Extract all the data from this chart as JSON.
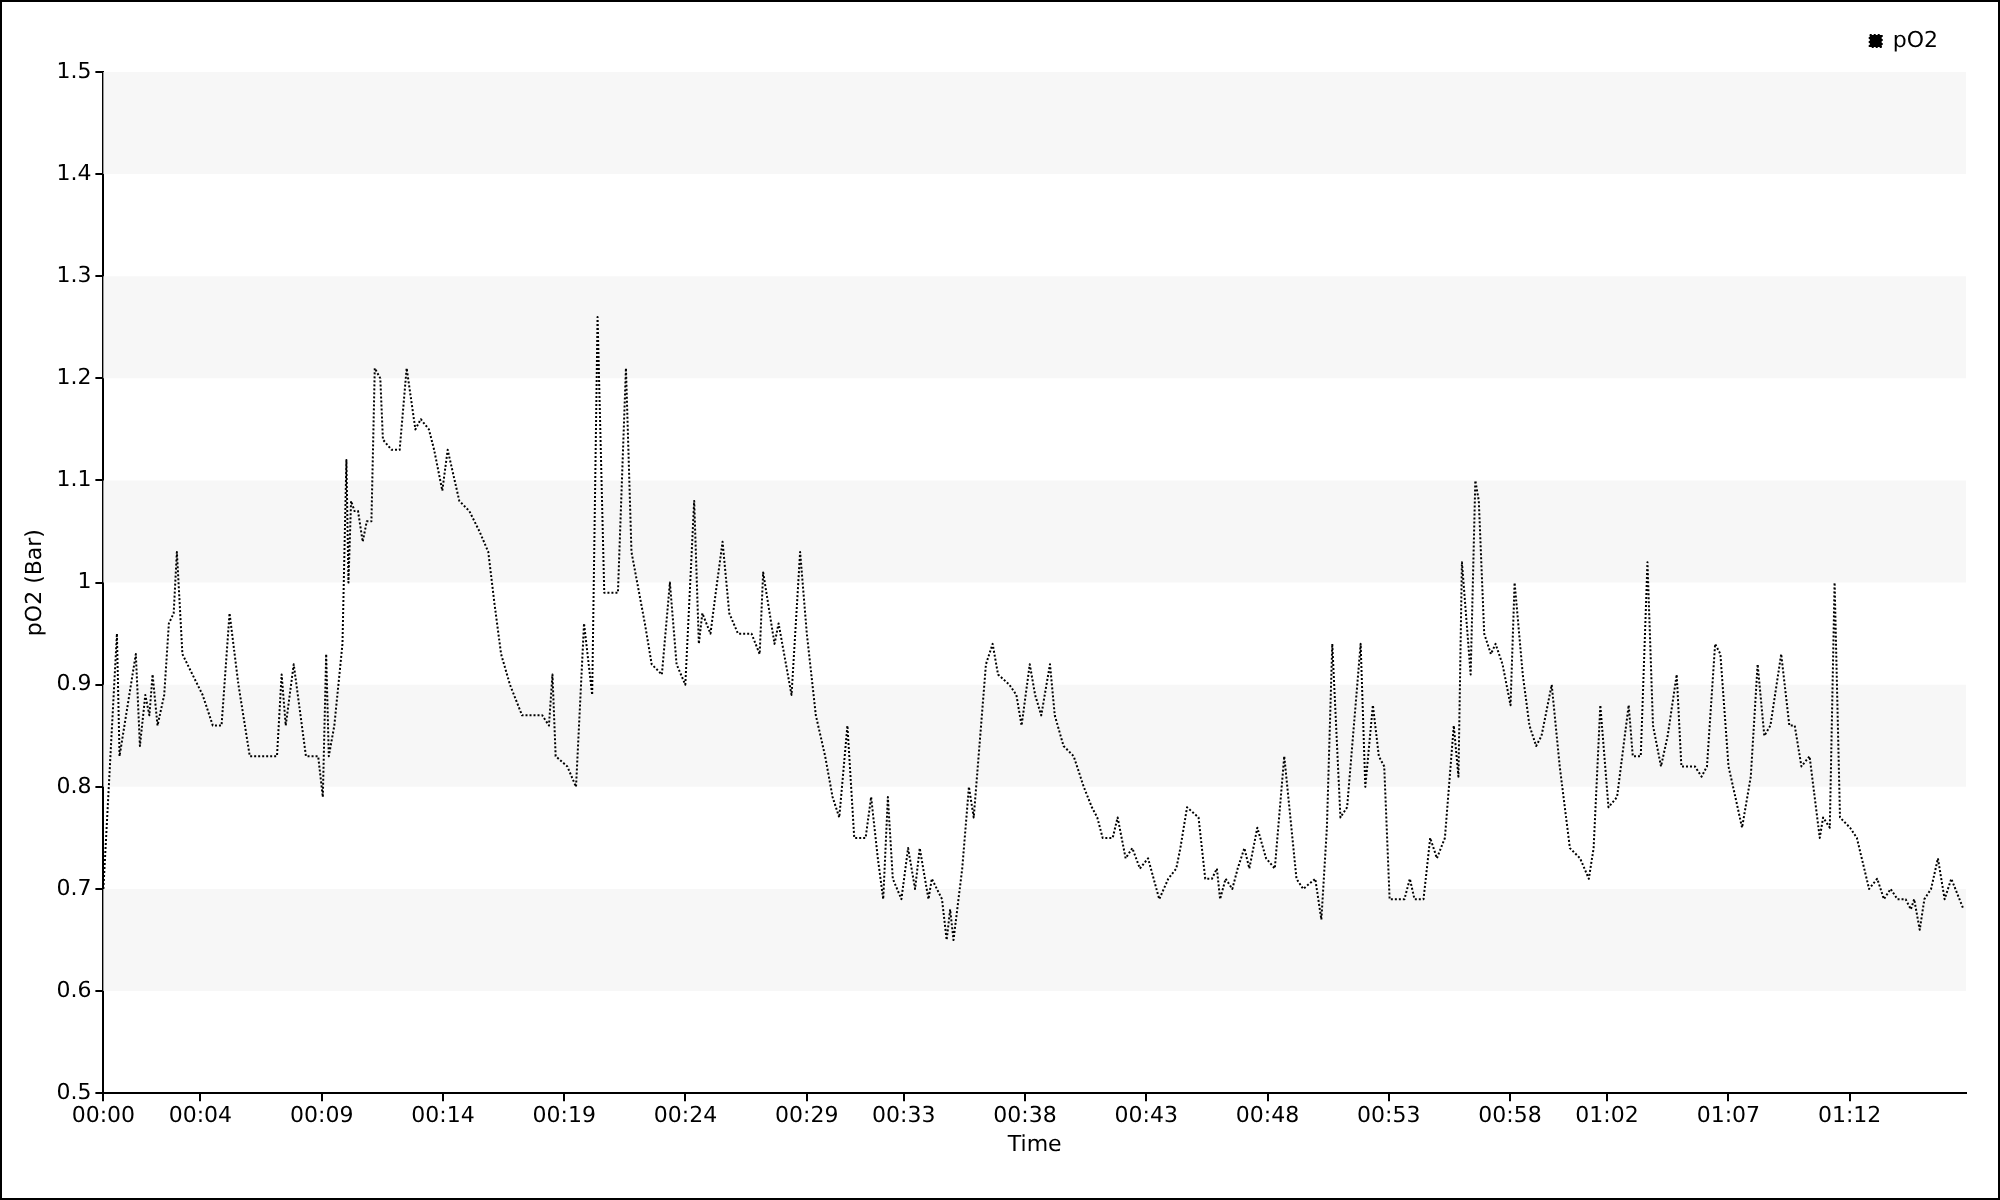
{
  "chart_data": {
    "type": "line",
    "xlabel": "Time",
    "ylabel": "pO2 (Bar)",
    "x": [
      0,
      0.0093,
      0.0111,
      0.0223,
      0.0251,
      0.0288,
      0.0316,
      0.0338,
      0.0372,
      0.0418,
      0.045,
      0.0483,
      0.0505,
      0.0543,
      0.0612,
      0.0682,
      0.0752,
      0.0812,
      0.0867,
      0.0928,
      0.1006,
      0.1193,
      0.1225,
      0.1253,
      0.1308,
      0.1392,
      0.1476,
      0.1508,
      0.1531,
      0.1549,
      0.1587,
      0.1643,
      0.167,
      0.1684,
      0.1702,
      0.1726,
      0.175,
      0.1782,
      0.181,
      0.1842,
      0.1865,
      0.1903,
      0.1921,
      0.1981,
      0.2036,
      0.2084,
      0.2144,
      0.2181,
      0.2237,
      0.2273,
      0.2329,
      0.2366,
      0.2446,
      0.2515,
      0.2585,
      0.2645,
      0.2687,
      0.2733,
      0.2794,
      0.2877,
      0.3016,
      0.3062,
      0.3086,
      0.3108,
      0.3188,
      0.3248,
      0.3303,
      0.3359,
      0.3396,
      0.3442,
      0.3536,
      0.3591,
      0.3629,
      0.3721,
      0.3768,
      0.3838,
      0.3893,
      0.3939,
      0.3999,
      0.406,
      0.4092,
      0.4116,
      0.4172,
      0.4208,
      0.4255,
      0.4301,
      0.4361,
      0.4454,
      0.451,
      0.4534,
      0.4612,
      0.464,
      0.4729,
      0.4788,
      0.4834,
      0.4896,
      0.496,
      0.5011,
      0.5057,
      0.5113,
      0.516,
      0.5238,
      0.5276,
      0.5322,
      0.5359,
      0.5391,
      0.5425,
      0.5484,
      0.553,
      0.5578,
      0.561,
      0.567,
      0.5693,
      0.5763,
      0.5795,
      0.5819,
      0.5842,
      0.5902,
      0.5948,
      0.5981,
      0.6065,
      0.6111,
      0.6148,
      0.6226,
      0.6274,
      0.631,
      0.6366,
      0.6403,
      0.6445,
      0.6505,
      0.6538,
      0.6598,
      0.6668,
      0.6737,
      0.6793,
      0.683,
      0.6867,
      0.6936,
      0.697,
      0.7025,
      0.7071,
      0.7123,
      0.7179,
      0.7256,
      0.7318,
      0.7373,
      0.7401,
      0.7447,
      0.7526,
      0.7572,
      0.7618,
      0.7652,
      0.7674,
      0.7712,
      0.7758,
      0.7795,
      0.7841,
      0.7875,
      0.793,
      0.799,
      0.805,
      0.8115,
      0.8199,
      0.8245,
      0.8328,
      0.837,
      0.8408,
      0.8445,
      0.8501,
      0.8547,
      0.864,
      0.8672,
      0.8724,
      0.8765,
      0.8802,
      0.8839,
      0.8941,
      0.8978,
      0.901,
      0.9072,
      0.9118,
      0.9164,
      0.9219,
      0.928,
      0.9312,
      0.9336,
      0.9396,
      0.9428,
      0.9452,
      0.9489,
      0.9535,
      0.9567,
      0.9615,
      0.967,
      0.9698,
      0.9754,
      0.98,
      0.9846,
      0.9883,
      0.9953,
      1.0008,
      1.0078,
      1.0148,
      1.0208,
      1.0241,
      1.0287,
      1.0343,
      1.0402,
      1.0482,
      1.051,
      1.0565,
      1.0611,
      1.0649,
      1.0704,
      1.075,
      1.0812,
      1.0844,
      1.0937,
      1.0983,
      1.102,
      1.1076,
      1.1112,
      1.1168,
      1.1215,
      1.1261,
      1.1321,
      1.1368,
      1.1414,
      1.1456,
      1.153,
      1.1586,
      1.1623,
      1.1669,
      1.1725,
      1.1795,
      1.1818,
      1.1864,
      1.1897,
      1.1934,
      1.2003,
      1.205,
      1.2134,
      1.219,
      1.2236,
      1.2282,
      1.2329,
      1.2385,
      1.2421,
      1.2444,
      1.2482,
      1.2514,
      1.256,
      1.2607,
      1.2653,
      1.2699,
      1.2783
    ],
    "series": [
      {
        "name": "pO2",
        "color": "#000000",
        "values": [
          0.7,
          0.95,
          0.83,
          0.93,
          0.84,
          0.89,
          0.87,
          0.91,
          0.86,
          0.89,
          0.96,
          0.97,
          1.03,
          0.93,
          0.91,
          0.89,
          0.86,
          0.86,
          0.97,
          0.9,
          0.83,
          0.83,
          0.91,
          0.86,
          0.92,
          0.83,
          0.83,
          0.79,
          0.93,
          0.83,
          0.86,
          0.94,
          1.12,
          1.0,
          1.08,
          1.07,
          1.07,
          1.04,
          1.06,
          1.06,
          1.21,
          1.2,
          1.14,
          1.13,
          1.13,
          1.21,
          1.15,
          1.16,
          1.15,
          1.13,
          1.09,
          1.13,
          1.08,
          1.07,
          1.05,
          1.03,
          0.98,
          0.93,
          0.9,
          0.87,
          0.87,
          0.86,
          0.91,
          0.83,
          0.82,
          0.8,
          0.96,
          0.89,
          1.26,
          0.99,
          0.99,
          1.21,
          1.03,
          0.96,
          0.92,
          0.91,
          1.0,
          0.92,
          0.9,
          1.08,
          0.94,
          0.97,
          0.95,
          0.99,
          1.04,
          0.97,
          0.95,
          0.95,
          0.93,
          1.01,
          0.94,
          0.96,
          0.89,
          1.03,
          0.95,
          0.87,
          0.83,
          0.79,
          0.77,
          0.86,
          0.75,
          0.75,
          0.79,
          0.73,
          0.69,
          0.79,
          0.71,
          0.69,
          0.74,
          0.7,
          0.74,
          0.69,
          0.71,
          0.69,
          0.65,
          0.68,
          0.65,
          0.72,
          0.8,
          0.77,
          0.92,
          0.94,
          0.91,
          0.9,
          0.89,
          0.86,
          0.92,
          0.89,
          0.87,
          0.92,
          0.87,
          0.84,
          0.83,
          0.8,
          0.78,
          0.77,
          0.75,
          0.75,
          0.77,
          0.73,
          0.74,
          0.72,
          0.73,
          0.69,
          0.71,
          0.72,
          0.74,
          0.78,
          0.77,
          0.71,
          0.71,
          0.72,
          0.69,
          0.71,
          0.7,
          0.72,
          0.74,
          0.72,
          0.76,
          0.73,
          0.72,
          0.83,
          0.71,
          0.7,
          0.71,
          0.67,
          0.76,
          0.94,
          0.77,
          0.78,
          0.94,
          0.8,
          0.88,
          0.83,
          0.82,
          0.69,
          0.69,
          0.71,
          0.69,
          0.69,
          0.75,
          0.73,
          0.75,
          0.86,
          0.81,
          1.02,
          0.91,
          1.1,
          1.08,
          0.95,
          0.93,
          0.94,
          0.92,
          0.88,
          1.0,
          0.91,
          0.86,
          0.84,
          0.85,
          0.9,
          0.82,
          0.74,
          0.73,
          0.71,
          0.74,
          0.88,
          0.78,
          0.79,
          0.88,
          0.83,
          0.83,
          1.02,
          0.86,
          0.82,
          0.85,
          0.91,
          0.82,
          0.82,
          0.81,
          0.82,
          0.94,
          0.93,
          0.82,
          0.79,
          0.76,
          0.81,
          0.92,
          0.85,
          0.86,
          0.93,
          0.86,
          0.86,
          0.82,
          0.83,
          0.75,
          0.77,
          0.76,
          1.0,
          0.77,
          0.76,
          0.75,
          0.7,
          0.71,
          0.69,
          0.7,
          0.69,
          0.69,
          0.68,
          0.69,
          0.66,
          0.69,
          0.7,
          0.73,
          0.69,
          0.71,
          0.68
        ]
      }
    ],
    "xlim": [
      0,
      1.28
    ],
    "xticks": [
      {
        "value": 0,
        "label": "00:00"
      },
      {
        "value": 0.06667,
        "label": "00:04"
      },
      {
        "value": 0.15,
        "label": "00:09"
      },
      {
        "value": 0.23333,
        "label": "00:14"
      },
      {
        "value": 0.31667,
        "label": "00:19"
      },
      {
        "value": 0.4,
        "label": "00:24"
      },
      {
        "value": 0.48333,
        "label": "00:29"
      },
      {
        "value": 0.55,
        "label": "00:33"
      },
      {
        "value": 0.63333,
        "label": "00:38"
      },
      {
        "value": 0.71667,
        "label": "00:43"
      },
      {
        "value": 0.8,
        "label": "00:48"
      },
      {
        "value": 0.88333,
        "label": "00:53"
      },
      {
        "value": 0.96667,
        "label": "00:58"
      },
      {
        "value": 1.03333,
        "label": "01:02"
      },
      {
        "value": 1.11667,
        "label": "01:07"
      },
      {
        "value": 1.2,
        "label": "01:12"
      }
    ],
    "ylim": [
      0.5,
      1.5
    ],
    "yticks": [
      0.5,
      0.6,
      0.7,
      0.8,
      0.9,
      1,
      1.1,
      1.2,
      1.3,
      1.4,
      1.5
    ],
    "bands": [
      {
        "axis": "y",
        "from": 0.6,
        "to": 0.7,
        "color": "#f7f7f7"
      },
      {
        "axis": "y",
        "from": 0.8,
        "to": 0.9,
        "color": "#f7f7f7"
      },
      {
        "axis": "y",
        "from": 1,
        "to": 1.1,
        "color": "#f7f7f7"
      },
      {
        "axis": "y",
        "from": 1.2,
        "to": 1.3,
        "color": "#f7f7f7"
      },
      {
        "axis": "y",
        "from": 1.4,
        "to": 1.5,
        "color": "#f7f7f7"
      }
    ],
    "legend": "top right",
    "marker": "none",
    "line_style": "dotted"
  }
}
